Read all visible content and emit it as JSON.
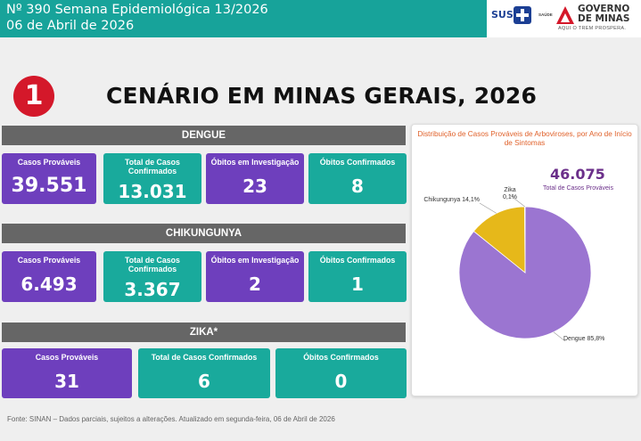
{
  "header": {
    "line1": "Nº 390 Semana Epidemiológica 13/2026",
    "line2": "06 de Abril de 2026",
    "logos": {
      "sus": "SUS",
      "saude": "SAÚDE",
      "gov_line1": "GOVERNO",
      "gov_line2": "DE MINAS",
      "gov_sub": "AQUI O TREM PROSPERA."
    }
  },
  "badge": "1",
  "title": "CENÁRIO EM MINAS GERAIS, 2026",
  "sections": {
    "dengue": {
      "name": "DENGUE",
      "cards": [
        {
          "label": "Casos Prováveis",
          "value": "39.551",
          "color": "purple"
        },
        {
          "label": "Total de Casos Confirmados",
          "value": "13.031",
          "color": "teal"
        },
        {
          "label": "Óbitos em Investigação",
          "value": "23",
          "color": "purple"
        },
        {
          "label": "Óbitos Confirmados",
          "value": "8",
          "color": "teal"
        }
      ]
    },
    "chikungunya": {
      "name": "CHIKUNGUNYA",
      "cards": [
        {
          "label": "Casos Prováveis",
          "value": "6.493",
          "color": "purple"
        },
        {
          "label": "Total de Casos Confirmados",
          "value": "3.367",
          "color": "teal"
        },
        {
          "label": "Óbitos em Investigação",
          "value": "2",
          "color": "purple"
        },
        {
          "label": "Óbitos Confirmados",
          "value": "1",
          "color": "teal"
        }
      ]
    },
    "zika": {
      "name": "ZIKA*",
      "cards": [
        {
          "label": "Casos Prováveis",
          "value": "31",
          "color": "purple"
        },
        {
          "label": "Total de Casos Confirmados",
          "value": "6",
          "color": "teal"
        },
        {
          "label": "Óbitos Confirmados",
          "value": "0",
          "color": "teal"
        }
      ]
    }
  },
  "chart_data": {
    "type": "pie",
    "title": "Distribuição de Casos Prováveis de Arboviroses, por Ano de Início de Sintomas",
    "total": "46.075",
    "total_label": "Total de Casos Prováveis",
    "slices": [
      {
        "label": "Dengue 85,8%",
        "name": "Dengue",
        "value": 85.8,
        "color": "#9b75d1"
      },
      {
        "label": "Chikungunya 14,1%",
        "name": "Chikungunya",
        "value": 14.1,
        "color": "#e6b81a"
      },
      {
        "label": "Zika 0,1%",
        "name": "Zika",
        "value": 0.1,
        "color": "#7fbf3f"
      }
    ]
  },
  "footer": "Fonte: SINAN – Dados parciais, sujeitos a alterações. Atualizado em segunda-feira, 06 de Abril de 2026",
  "colors": {
    "header": "#17a39a",
    "purple": "#6e3fbd",
    "teal": "#19aa9c",
    "band": "#666666",
    "badge": "#d4182a"
  }
}
